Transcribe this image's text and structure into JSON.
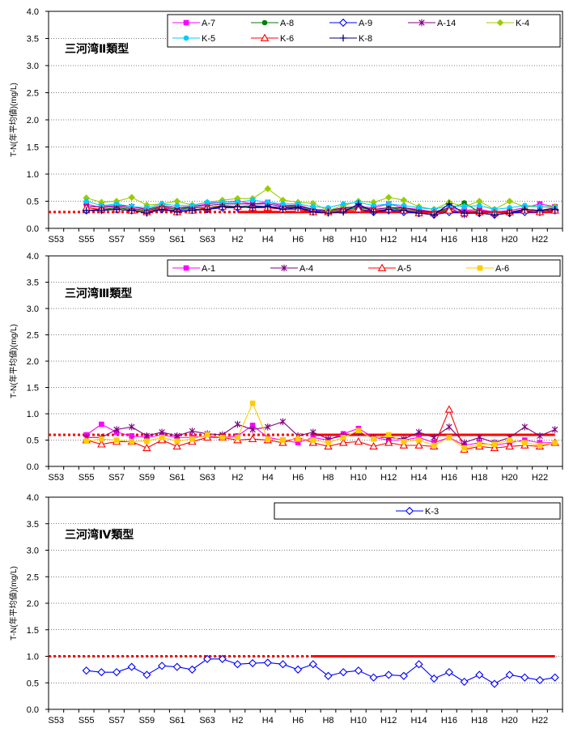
{
  "colors": {
    "standard_line": "#ff0000",
    "gridline": "#000000",
    "background": "#ffffff"
  },
  "chart_data": [
    {
      "type": "line",
      "title": "三河湾Ⅱ類型",
      "ylabel": "T-N(年平均値)(mg/L)",
      "ylim": [
        0,
        4.0
      ],
      "yticks": [
        "4.0",
        "3.5",
        "3.0",
        "2.5",
        "2.0",
        "1.5",
        "1.0",
        "0.5",
        "0.0"
      ],
      "xticklabels": [
        "S53",
        "S55",
        "S57",
        "S59",
        "S61",
        "S63",
        "H2",
        "H4",
        "H6",
        "H8",
        "H10",
        "H12",
        "H14",
        "H16",
        "H18",
        "H20",
        "H22"
      ],
      "x": [
        "S53",
        "S54",
        "S55",
        "S56",
        "S57",
        "S58",
        "S59",
        "S60",
        "S61",
        "S62",
        "S63",
        "H1",
        "H2",
        "H3",
        "H4",
        "H5",
        "H6",
        "H7",
        "H8",
        "H9",
        "H10",
        "H11",
        "H12",
        "H13",
        "H14",
        "H15",
        "H16",
        "H17",
        "H18",
        "H19",
        "H20",
        "H21",
        "H22",
        "H23"
      ],
      "grid": true,
      "legend_position": "top-right",
      "standard": {
        "value": 0.3,
        "dotted_from": "S53",
        "dotted_to": "H2",
        "solid_from": "H2",
        "solid_to": "H23"
      },
      "series": [
        {
          "name": "A-7",
          "color": "#ff00ff",
          "marker": "square",
          "values": [
            null,
            null,
            0.45,
            0.38,
            0.4,
            0.37,
            0.33,
            0.38,
            0.35,
            0.4,
            0.45,
            0.48,
            0.5,
            0.45,
            0.48,
            0.42,
            0.43,
            0.35,
            0.33,
            0.37,
            0.4,
            0.38,
            0.45,
            0.38,
            0.35,
            0.3,
            0.38,
            0.33,
            0.35,
            0.3,
            0.33,
            0.38,
            0.45,
            0.4
          ]
        },
        {
          "name": "A-8",
          "color": "#008000",
          "marker": "circle",
          "values": [
            null,
            null,
            0.33,
            0.35,
            0.38,
            0.35,
            0.33,
            0.4,
            0.35,
            0.38,
            0.38,
            0.42,
            0.4,
            0.42,
            0.4,
            0.38,
            0.4,
            0.35,
            0.33,
            0.35,
            0.38,
            0.35,
            0.38,
            0.35,
            0.33,
            0.3,
            0.35,
            0.47,
            0.3,
            0.28,
            0.3,
            0.35,
            0.33,
            0.35
          ]
        },
        {
          "name": "A-9",
          "color": "#0000ff",
          "marker": "diamond-open",
          "values": [
            null,
            null,
            0.33,
            0.35,
            0.35,
            0.33,
            0.3,
            0.35,
            0.33,
            0.35,
            0.35,
            0.38,
            0.38,
            0.4,
            0.4,
            0.38,
            0.38,
            0.33,
            0.3,
            0.33,
            0.35,
            0.3,
            0.33,
            0.3,
            0.28,
            0.25,
            0.3,
            0.28,
            0.28,
            0.25,
            0.28,
            0.3,
            0.3,
            0.33
          ]
        },
        {
          "name": "A-14",
          "color": "#800080",
          "marker": "star",
          "values": [
            null,
            null,
            0.4,
            0.4,
            0.42,
            0.4,
            0.35,
            0.42,
            0.38,
            0.4,
            0.42,
            0.45,
            0.45,
            0.45,
            0.45,
            0.4,
            0.42,
            0.35,
            0.33,
            0.38,
            0.4,
            0.35,
            0.38,
            0.38,
            0.33,
            0.3,
            0.38,
            0.25,
            0.33,
            0.28,
            0.3,
            0.35,
            0.33,
            0.38
          ]
        },
        {
          "name": "K-4",
          "color": "#99cc00",
          "marker": "diamond",
          "values": [
            null,
            null,
            0.56,
            0.48,
            0.5,
            0.57,
            0.43,
            0.45,
            0.5,
            0.43,
            0.48,
            0.52,
            0.55,
            0.55,
            0.73,
            0.52,
            0.48,
            0.46,
            0.33,
            0.42,
            0.5,
            0.48,
            0.57,
            0.52,
            0.4,
            0.35,
            0.48,
            0.4,
            0.5,
            0.35,
            0.5,
            0.4,
            0.4,
            0.4
          ]
        },
        {
          "name": "K-5",
          "color": "#00ccff",
          "marker": "circle",
          "values": [
            null,
            null,
            0.5,
            0.42,
            0.45,
            0.4,
            0.38,
            0.45,
            0.42,
            0.42,
            0.48,
            0.48,
            0.48,
            0.52,
            0.48,
            0.45,
            0.45,
            0.4,
            0.38,
            0.45,
            0.48,
            0.42,
            0.45,
            0.42,
            0.38,
            0.35,
            0.42,
            0.4,
            0.42,
            0.35,
            0.38,
            0.42,
            0.4,
            0.38
          ]
        },
        {
          "name": "K-6",
          "color": "#ff0000",
          "marker": "triangle-open",
          "values": [
            null,
            null,
            0.38,
            0.35,
            0.35,
            0.33,
            0.3,
            0.38,
            0.3,
            0.33,
            0.38,
            0.4,
            0.4,
            0.38,
            0.38,
            0.35,
            0.35,
            0.3,
            0.3,
            0.33,
            0.35,
            0.33,
            0.35,
            0.33,
            0.28,
            0.28,
            0.33,
            0.28,
            0.3,
            0.28,
            0.3,
            0.33,
            0.3,
            0.33
          ]
        },
        {
          "name": "K-8",
          "color": "#000080",
          "marker": "plus",
          "values": [
            null,
            null,
            0.33,
            0.33,
            0.35,
            0.33,
            0.28,
            0.35,
            0.3,
            0.33,
            0.35,
            0.4,
            0.4,
            0.38,
            0.4,
            0.35,
            0.38,
            0.3,
            0.28,
            0.3,
            0.45,
            0.3,
            0.35,
            0.33,
            0.28,
            0.25,
            0.45,
            0.28,
            0.28,
            0.25,
            0.28,
            0.35,
            0.33,
            0.35
          ]
        }
      ]
    },
    {
      "type": "line",
      "title": "三河湾Ⅲ類型",
      "ylabel": "T-N(年平均値)(mg/L)",
      "ylim": [
        0,
        4.0
      ],
      "yticks": [
        "4.0",
        "3.5",
        "3.0",
        "2.5",
        "2.0",
        "1.5",
        "1.0",
        "0.5",
        "0.0"
      ],
      "xticklabels": [
        "S53",
        "S55",
        "S57",
        "S59",
        "S61",
        "S63",
        "H2",
        "H4",
        "H6",
        "H8",
        "H10",
        "H12",
        "H14",
        "H16",
        "H18",
        "H20",
        "H22"
      ],
      "x": [
        "S53",
        "S54",
        "S55",
        "S56",
        "S57",
        "S58",
        "S59",
        "S60",
        "S61",
        "S62",
        "S63",
        "H1",
        "H2",
        "H3",
        "H4",
        "H5",
        "H6",
        "H7",
        "H8",
        "H9",
        "H10",
        "H11",
        "H12",
        "H13",
        "H14",
        "H15",
        "H16",
        "H17",
        "H18",
        "H19",
        "H20",
        "H21",
        "H22",
        "H23"
      ],
      "grid": true,
      "legend_position": "top-right",
      "standard": {
        "value": 0.6,
        "dotted_from": "S53",
        "dotted_to": "H7",
        "solid_from": "H7",
        "solid_to": "H23"
      },
      "series": [
        {
          "name": "A-1",
          "color": "#ff00ff",
          "marker": "square",
          "values": [
            null,
            null,
            0.6,
            0.8,
            0.65,
            0.58,
            0.55,
            0.6,
            0.55,
            0.55,
            0.58,
            0.55,
            0.58,
            0.78,
            0.55,
            0.5,
            0.45,
            0.55,
            0.5,
            0.62,
            0.72,
            0.55,
            0.5,
            0.5,
            0.55,
            0.45,
            0.55,
            0.4,
            0.45,
            0.4,
            0.45,
            0.5,
            0.45,
            0.45
          ]
        },
        {
          "name": "A-4",
          "color": "#800080",
          "marker": "star",
          "values": [
            null,
            null,
            0.55,
            0.55,
            0.7,
            0.75,
            0.58,
            0.65,
            0.58,
            0.67,
            0.62,
            0.6,
            0.8,
            0.7,
            0.75,
            0.85,
            0.58,
            0.65,
            0.52,
            0.58,
            0.65,
            0.55,
            0.55,
            0.52,
            0.65,
            0.55,
            0.75,
            0.45,
            0.55,
            0.45,
            0.55,
            0.75,
            0.58,
            0.7
          ]
        },
        {
          "name": "A-5",
          "color": "#ff0000",
          "marker": "triangle-open",
          "values": [
            null,
            null,
            0.5,
            0.42,
            0.47,
            0.47,
            0.35,
            0.5,
            0.38,
            0.47,
            0.55,
            0.55,
            0.5,
            0.52,
            0.5,
            0.45,
            0.55,
            0.45,
            0.38,
            0.45,
            0.47,
            0.38,
            0.45,
            0.4,
            0.4,
            0.38,
            1.08,
            0.32,
            0.38,
            0.35,
            0.38,
            0.4,
            0.38,
            0.45
          ]
        },
        {
          "name": "A-6",
          "color": "#ffcc00",
          "marker": "square",
          "values": [
            null,
            null,
            0.48,
            0.52,
            0.5,
            0.47,
            0.48,
            0.55,
            0.48,
            0.52,
            0.6,
            0.55,
            0.55,
            1.2,
            0.52,
            0.5,
            0.52,
            0.5,
            0.45,
            0.55,
            0.68,
            0.52,
            0.6,
            0.47,
            0.5,
            0.4,
            0.55,
            0.35,
            0.42,
            0.42,
            0.5,
            0.45,
            0.4,
            0.45
          ]
        }
      ]
    },
    {
      "type": "line",
      "title": "三河湾Ⅳ類型",
      "ylabel": "T-N(年平均値)(mg/L)",
      "ylim": [
        0,
        4.0
      ],
      "yticks": [
        "4.0",
        "3.5",
        "3.0",
        "2.5",
        "2.0",
        "1.5",
        "1.0",
        "0.5",
        "0.0"
      ],
      "xticklabels": [
        "S53",
        "S55",
        "S57",
        "S59",
        "S61",
        "S63",
        "H2",
        "H4",
        "H6",
        "H8",
        "H10",
        "H12",
        "H14",
        "H16",
        "H18",
        "H20",
        "H22"
      ],
      "x": [
        "S53",
        "S54",
        "S55",
        "S56",
        "S57",
        "S58",
        "S59",
        "S60",
        "S61",
        "S62",
        "S63",
        "H1",
        "H2",
        "H3",
        "H4",
        "H5",
        "H6",
        "H7",
        "H8",
        "H9",
        "H10",
        "H11",
        "H12",
        "H13",
        "H14",
        "H15",
        "H16",
        "H17",
        "H18",
        "H19",
        "H20",
        "H21",
        "H22",
        "H23"
      ],
      "grid": true,
      "legend_position": "top-right",
      "standard": {
        "value": 1.0,
        "dotted_from": "S53",
        "dotted_to": "H7",
        "solid_from": "H7",
        "solid_to": "H23"
      },
      "series": [
        {
          "name": "K-3",
          "color": "#0000ff",
          "marker": "diamond-open",
          "values": [
            null,
            null,
            0.73,
            0.7,
            0.7,
            0.8,
            0.65,
            0.82,
            0.8,
            0.75,
            0.95,
            0.95,
            0.85,
            0.87,
            0.88,
            0.85,
            0.75,
            0.85,
            0.63,
            0.7,
            0.73,
            0.6,
            0.65,
            0.63,
            0.85,
            0.58,
            0.7,
            0.52,
            0.65,
            0.48,
            0.65,
            0.6,
            0.55,
            0.6
          ]
        }
      ]
    }
  ]
}
